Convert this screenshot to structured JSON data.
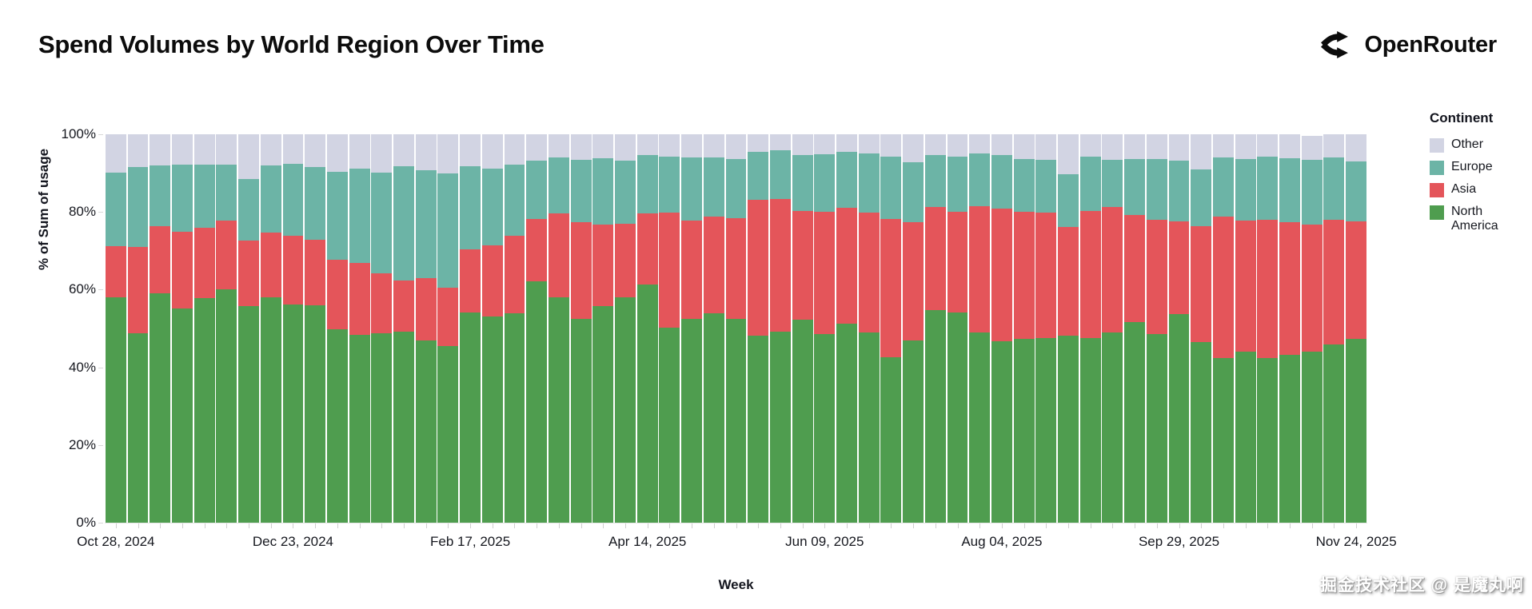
{
  "header": {
    "title": "Spend Volumes by World Region Over Time",
    "logo_text": "OpenRouter"
  },
  "watermark": "掘金技术社区 @ 是魔丸啊",
  "colors": {
    "north_america": "#4f9d4f",
    "asia": "#e4555a",
    "europe": "#6cb4a6",
    "other": "#d2d4e3",
    "axis_text": "#16181f",
    "background": "#ffffff"
  },
  "chart_data": {
    "type": "bar",
    "stacked": true,
    "normalized_percent": true,
    "title": "Spend Volumes by World Region Over Time",
    "xlabel": "Week",
    "ylabel": "% of Sum of usage",
    "ylim": [
      0,
      100
    ],
    "grid": false,
    "y_tick_values": [
      0,
      20,
      40,
      60,
      80,
      100
    ],
    "y_tick_labels": [
      "0%",
      "20%",
      "40%",
      "60%",
      "80%",
      "100%"
    ],
    "x_tick_every": 8,
    "x_tick_labels": [
      "Oct 28, 2024",
      "Dec 23, 2024",
      "Feb 17, 2025",
      "Apr 14, 2025",
      "Jun 09, 2025",
      "Aug 04, 2025",
      "Sep 29, 2025",
      "Nov 24, 2025"
    ],
    "legend": {
      "title": "Continent",
      "position": "right",
      "entries_top_to_bottom": [
        "Other",
        "Europe",
        "Asia",
        "North America"
      ]
    },
    "categories": [
      "Oct 28, 2024",
      "Nov 04, 2024",
      "Nov 11, 2024",
      "Nov 18, 2024",
      "Nov 25, 2024",
      "Dec 02, 2024",
      "Dec 09, 2024",
      "Dec 16, 2024",
      "Dec 23, 2024",
      "Dec 30, 2024",
      "Jan 06, 2025",
      "Jan 13, 2025",
      "Jan 20, 2025",
      "Jan 27, 2025",
      "Feb 03, 2025",
      "Feb 10, 2025",
      "Feb 17, 2025",
      "Feb 24, 2025",
      "Mar 03, 2025",
      "Mar 10, 2025",
      "Mar 17, 2025",
      "Mar 24, 2025",
      "Mar 31, 2025",
      "Apr 07, 2025",
      "Apr 14, 2025",
      "Apr 21, 2025",
      "Apr 28, 2025",
      "May 05, 2025",
      "May 12, 2025",
      "May 19, 2025",
      "May 26, 2025",
      "Jun 02, 2025",
      "Jun 09, 2025",
      "Jun 16, 2025",
      "Jun 23, 2025",
      "Jun 30, 2025",
      "Jul 07, 2025",
      "Jul 14, 2025",
      "Jul 21, 2025",
      "Jul 28, 2025",
      "Aug 04, 2025",
      "Aug 11, 2025",
      "Aug 18, 2025",
      "Aug 25, 2025",
      "Sep 01, 2025",
      "Sep 08, 2025",
      "Sep 15, 2025",
      "Sep 22, 2025",
      "Sep 29, 2025",
      "Oct 06, 2025",
      "Oct 13, 2025",
      "Oct 20, 2025",
      "Oct 27, 2025",
      "Nov 03, 2025",
      "Nov 10, 2025",
      "Nov 17, 2025",
      "Nov 24, 2025"
    ],
    "series": [
      {
        "name": "North America",
        "color": "#4f9d4f",
        "values": [
          58.1,
          48.8,
          59.0,
          55.1,
          57.8,
          60.1,
          55.8,
          58.1,
          56.2,
          56.0,
          49.7,
          48.3,
          48.8,
          49.2,
          46.9,
          45.4,
          54.1,
          53.1,
          53.9,
          62.2,
          58.1,
          52.5,
          56.5,
          58.1,
          61.3,
          50.3,
          52.4,
          53.9,
          52.4,
          48.1,
          49.2,
          52.2,
          48.5,
          51.3,
          49.0,
          42.6,
          46.9,
          54.8,
          54.1,
          49.0,
          46.7,
          47.3,
          47.5,
          48.2,
          47.6,
          48.9,
          51.7,
          48.5,
          53.8,
          46.5,
          42.3,
          44.0,
          42.3,
          43.3,
          44.0,
          45.9,
          47.3
        ]
      },
      {
        "name": "Asia",
        "color": "#e4555a",
        "values": [
          13.0,
          22.1,
          17.3,
          19.8,
          18.2,
          17.6,
          16.8,
          16.5,
          17.7,
          16.9,
          18.1,
          18.5,
          15.5,
          13.2,
          16.0,
          15.1,
          16.3,
          18.4,
          20.0,
          16.0,
          21.5,
          24.9,
          21.4,
          18.9,
          18.3,
          29.6,
          25.3,
          24.9,
          26.0,
          35.0,
          34.1,
          28.1,
          31.6,
          29.7,
          30.8,
          35.5,
          30.5,
          26.4,
          26.0,
          32.5,
          34.1,
          32.7,
          32.3,
          27.9,
          32.7,
          32.3,
          27.6,
          29.4,
          23.7,
          29.8,
          36.5,
          33.7,
          35.6,
          34.1,
          32.7,
          32.0,
          30.3
        ]
      },
      {
        "name": "Europe",
        "color": "#6cb4a6",
        "values": [
          19.1,
          20.6,
          15.6,
          17.2,
          16.1,
          14.4,
          15.9,
          17.3,
          18.4,
          18.7,
          22.5,
          24.4,
          25.9,
          29.4,
          27.9,
          29.5,
          21.4,
          19.7,
          18.2,
          15.1,
          14.4,
          16.1,
          17.2,
          16.2,
          15.0,
          14.3,
          16.3,
          15.2,
          15.3,
          12.3,
          12.5,
          14.4,
          14.8,
          14.4,
          15.3,
          16.1,
          15.4,
          13.5,
          14.1,
          13.6,
          13.8,
          13.7,
          13.7,
          13.6,
          13.9,
          12.3,
          14.4,
          15.8,
          15.8,
          14.6,
          15.2,
          16.0,
          16.3,
          16.4,
          16.7,
          16.1,
          15.5
        ]
      },
      {
        "name": "Other",
        "color": "#d2d4e3",
        "values": [
          9.8,
          8.5,
          8.1,
          7.9,
          7.9,
          7.9,
          11.5,
          8.1,
          7.7,
          8.4,
          9.7,
          8.8,
          9.8,
          8.2,
          9.2,
          10.0,
          8.2,
          8.8,
          7.9,
          6.7,
          6.0,
          6.5,
          6.3,
          6.8,
          5.4,
          5.8,
          6.0,
          6.0,
          6.3,
          4.6,
          4.2,
          5.3,
          5.1,
          4.6,
          4.9,
          5.8,
          7.2,
          5.3,
          5.8,
          4.9,
          5.4,
          6.3,
          6.5,
          10.3,
          5.8,
          6.5,
          6.3,
          6.3,
          6.7,
          9.1,
          6.0,
          6.3,
          5.8,
          6.2,
          6.2,
          6.0,
          6.9
        ]
      }
    ]
  }
}
